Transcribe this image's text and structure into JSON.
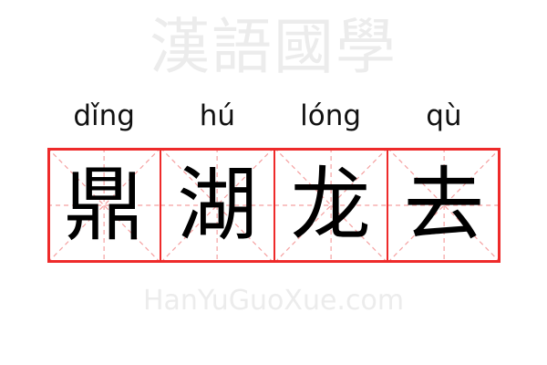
{
  "idiom": {
    "pinyin": [
      "dǐng",
      "hú",
      "lóng",
      "qù"
    ],
    "characters": [
      "鼎",
      "湖",
      "龙",
      "去"
    ]
  },
  "watermark": {
    "chinese": "漢語國學",
    "latin": "HanYuGuoXue.com"
  },
  "colors": {
    "grid_border": "#ee2a2a",
    "guide_lines": "#f5a0a0",
    "watermark": "#ececec"
  }
}
